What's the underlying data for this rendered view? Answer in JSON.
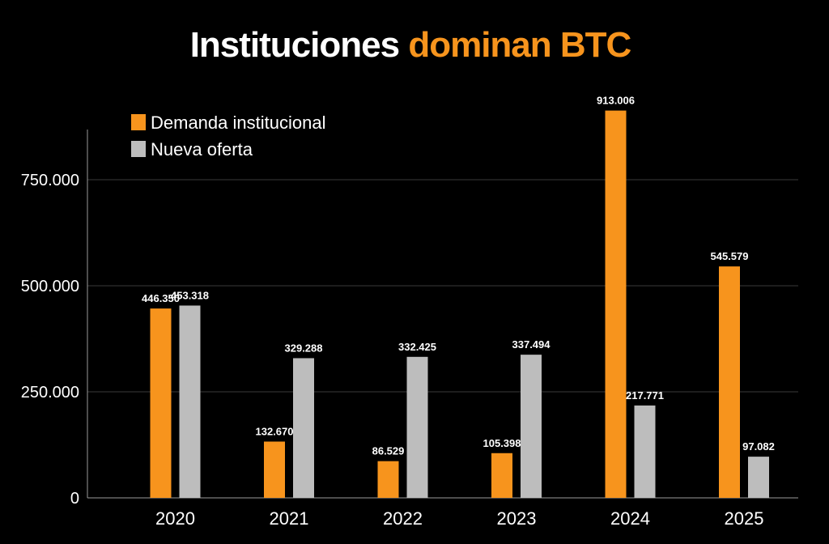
{
  "chart_data": {
    "type": "bar",
    "title_part1": "Instituciones",
    "title_part2": "dominan BTC",
    "categories": [
      "2020",
      "2021",
      "2022",
      "2023",
      "2024",
      "2025"
    ],
    "series": [
      {
        "name": "Demanda institucional",
        "color": "#F7941D",
        "values": [
          446350,
          132670,
          86529,
          105398,
          913006,
          545579
        ],
        "labels": [
          "446.350",
          "132.670",
          "86.529",
          "105.398",
          "913.006",
          "545.579"
        ]
      },
      {
        "name": "Nueva oferta",
        "color": "#BDBDBD",
        "values": [
          453318,
          329288,
          332425,
          337494,
          217771,
          97082
        ],
        "labels": [
          "453.318",
          "329.288",
          "332.425",
          "337.494",
          "217.771",
          "97.082"
        ]
      }
    ],
    "yticks": [
      0,
      250000,
      500000,
      750000
    ],
    "ytick_labels": [
      "0",
      "250.000",
      "500.000",
      "750.000"
    ],
    "ylim": [
      0,
      1000000
    ],
    "grid": true,
    "legend_position": "top-left",
    "title_accent_color": "#F7941D",
    "background": "#000000"
  }
}
